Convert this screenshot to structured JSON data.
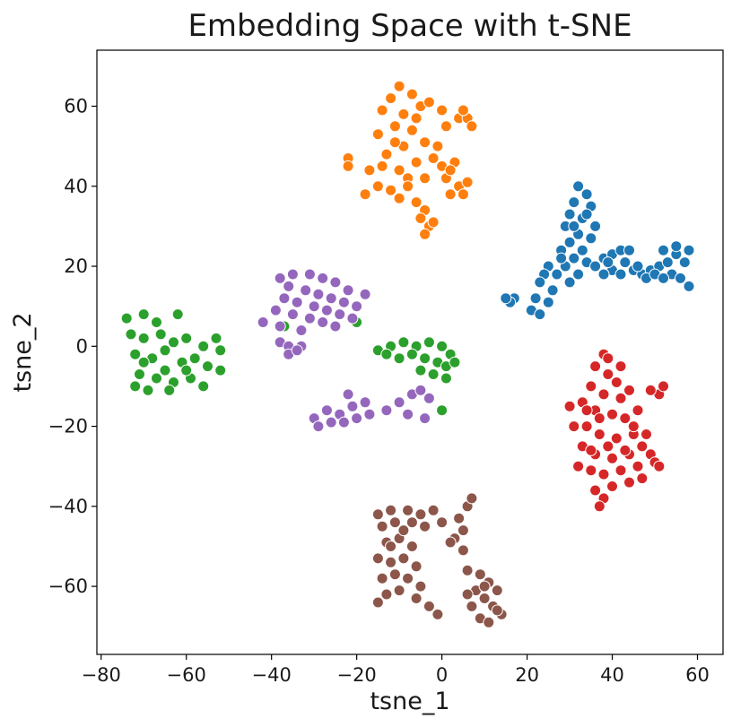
{
  "chart_data": {
    "type": "scatter",
    "title": "Embedding Space with t-SNE",
    "xlabel": "tsne_1",
    "ylabel": "tsne_2",
    "xlim": [
      -81,
      66
    ],
    "ylim": [
      -77,
      74
    ],
    "xticks": [
      -80,
      -60,
      -40,
      -20,
      0,
      20,
      40,
      60
    ],
    "yticks": [
      -60,
      -40,
      -20,
      0,
      20,
      40,
      60
    ],
    "tick_labels_x": [
      "−80",
      "−60",
      "−40",
      "−20",
      "0",
      "20",
      "40",
      "60"
    ],
    "tick_labels_y": [
      "−60",
      "−40",
      "−20",
      "0",
      "20",
      "40",
      "60"
    ],
    "grid": false,
    "legend": "none",
    "marker": {
      "edge_color": "#ffffff"
    },
    "series": [
      {
        "color": "#1f77b4",
        "points": [
          [
            32,
            40
          ],
          [
            34,
            38
          ],
          [
            31,
            36
          ],
          [
            35,
            35
          ],
          [
            30,
            33
          ],
          [
            33,
            32
          ],
          [
            36,
            30
          ],
          [
            29,
            30
          ],
          [
            32,
            28
          ],
          [
            35,
            27
          ],
          [
            30,
            26
          ],
          [
            33,
            24
          ],
          [
            28,
            24
          ],
          [
            31,
            22
          ],
          [
            34,
            21
          ],
          [
            29,
            20
          ],
          [
            32,
            18
          ],
          [
            27,
            18
          ],
          [
            30,
            16
          ],
          [
            25,
            20
          ],
          [
            24,
            18
          ],
          [
            23,
            16
          ],
          [
            26,
            14
          ],
          [
            22,
            12
          ],
          [
            25,
            11
          ],
          [
            21,
            9
          ],
          [
            23,
            8
          ],
          [
            17,
            12
          ],
          [
            16,
            11
          ],
          [
            15,
            12
          ],
          [
            36,
            20
          ],
          [
            38,
            22
          ],
          [
            40,
            23
          ],
          [
            42,
            24
          ],
          [
            44,
            24
          ],
          [
            43,
            21
          ],
          [
            40,
            19
          ],
          [
            38,
            18
          ],
          [
            45,
            19
          ],
          [
            47,
            18
          ],
          [
            49,
            19
          ],
          [
            51,
            20
          ],
          [
            53,
            21
          ],
          [
            52,
            24
          ],
          [
            55,
            23
          ],
          [
            54,
            18
          ],
          [
            56,
            17
          ],
          [
            58,
            15
          ],
          [
            57,
            21
          ],
          [
            58,
            24
          ],
          [
            48,
            17
          ],
          [
            46,
            20
          ],
          [
            50,
            18
          ],
          [
            52,
            17
          ],
          [
            42,
            18
          ],
          [
            39,
            21
          ],
          [
            55,
            25
          ],
          [
            34,
            33
          ],
          [
            31,
            30
          ],
          [
            28,
            22
          ]
        ]
      },
      {
        "color": "#ff7f0e",
        "points": [
          [
            -10,
            65
          ],
          [
            -7,
            63
          ],
          [
            -12,
            62
          ],
          [
            -5,
            60
          ],
          [
            -14,
            59
          ],
          [
            -9,
            58
          ],
          [
            -3,
            61
          ],
          [
            0,
            59
          ],
          [
            1,
            55
          ],
          [
            4,
            57
          ],
          [
            6,
            57
          ],
          [
            7,
            55
          ],
          [
            5,
            59
          ],
          [
            -11,
            55
          ],
          [
            -7,
            54
          ],
          [
            -15,
            53
          ],
          [
            -4,
            51
          ],
          [
            -9,
            50
          ],
          [
            -13,
            48
          ],
          [
            -2,
            47
          ],
          [
            -6,
            46
          ],
          [
            0,
            45
          ],
          [
            3,
            46
          ],
          [
            -14,
            45
          ],
          [
            -10,
            44
          ],
          [
            -17,
            44
          ],
          [
            -22,
            47
          ],
          [
            -22,
            45
          ],
          [
            -8,
            42
          ],
          [
            -4,
            42
          ],
          [
            1,
            42
          ],
          [
            4,
            40
          ],
          [
            6,
            41
          ],
          [
            2,
            38
          ],
          [
            5,
            38
          ],
          [
            -15,
            40
          ],
          [
            -12,
            39
          ],
          [
            -18,
            38
          ],
          [
            -10,
            37
          ],
          [
            -6,
            36
          ],
          [
            -4,
            34
          ],
          [
            -5,
            32
          ],
          [
            -3,
            30
          ],
          [
            -4,
            28
          ],
          [
            -2,
            31
          ],
          [
            -8,
            40
          ],
          [
            -1,
            50
          ],
          [
            -6,
            57
          ],
          [
            -11,
            51
          ],
          [
            2,
            44
          ]
        ]
      },
      {
        "color": "#2ca02c",
        "points": [
          [
            -74,
            7
          ],
          [
            -70,
            8
          ],
          [
            -67,
            6
          ],
          [
            -62,
            8
          ],
          [
            -73,
            3
          ],
          [
            -70,
            2
          ],
          [
            -66,
            3
          ],
          [
            -63,
            1
          ],
          [
            -60,
            2
          ],
          [
            -56,
            0
          ],
          [
            -53,
            2
          ],
          [
            -52,
            -1
          ],
          [
            -72,
            -2
          ],
          [
            -68,
            -3
          ],
          [
            -65,
            -1
          ],
          [
            -61,
            -4
          ],
          [
            -58,
            -3
          ],
          [
            -55,
            -5
          ],
          [
            -52,
            -6
          ],
          [
            -71,
            -7
          ],
          [
            -67,
            -8
          ],
          [
            -63,
            -9
          ],
          [
            -59,
            -8
          ],
          [
            -56,
            -10
          ],
          [
            -72,
            -10
          ],
          [
            -69,
            -11
          ],
          [
            -65,
            -6
          ],
          [
            -60,
            -6
          ],
          [
            -64,
            -11
          ],
          [
            -70,
            -4
          ],
          [
            -15,
            -1
          ],
          [
            -12,
            0
          ],
          [
            -9,
            1
          ],
          [
            -6,
            0
          ],
          [
            -3,
            1
          ],
          [
            0,
            0
          ],
          [
            2,
            -2
          ],
          [
            -13,
            -2
          ],
          [
            -10,
            -3
          ],
          [
            -7,
            -2
          ],
          [
            -4,
            -3
          ],
          [
            -1,
            -4
          ],
          [
            1,
            -5
          ],
          [
            3,
            -4
          ],
          [
            -5,
            -6
          ],
          [
            -2,
            -7
          ],
          [
            1,
            -8
          ],
          [
            -20,
            6
          ],
          [
            -37,
            5
          ],
          [
            0,
            -16
          ]
        ]
      },
      {
        "color": "#d62728",
        "points": [
          [
            38,
            -2
          ],
          [
            36,
            -5
          ],
          [
            39,
            -7
          ],
          [
            41,
            -9
          ],
          [
            35,
            -10
          ],
          [
            38,
            -12
          ],
          [
            42,
            -13
          ],
          [
            44,
            -11
          ],
          [
            33,
            -14
          ],
          [
            36,
            -16
          ],
          [
            40,
            -17
          ],
          [
            43,
            -18
          ],
          [
            46,
            -16
          ],
          [
            34,
            -20
          ],
          [
            37,
            -22
          ],
          [
            41,
            -23
          ],
          [
            45,
            -22
          ],
          [
            33,
            -25
          ],
          [
            36,
            -27
          ],
          [
            40,
            -28
          ],
          [
            44,
            -27
          ],
          [
            47,
            -25
          ],
          [
            49,
            -27
          ],
          [
            35,
            -31
          ],
          [
            38,
            -32
          ],
          [
            42,
            -31
          ],
          [
            46,
            -30
          ],
          [
            50,
            -29
          ],
          [
            47,
            -33
          ],
          [
            44,
            -34
          ],
          [
            40,
            -35
          ],
          [
            36,
            -36
          ],
          [
            38,
            -38
          ],
          [
            35,
            -26
          ],
          [
            31,
            -20
          ],
          [
            32,
            -30
          ],
          [
            51,
            -12
          ],
          [
            52,
            -10
          ],
          [
            49,
            -11
          ],
          [
            30,
            -15
          ],
          [
            42,
            -5
          ],
          [
            39,
            -3
          ],
          [
            37,
            -18
          ],
          [
            45,
            -20
          ],
          [
            48,
            -22
          ],
          [
            43,
            -26
          ],
          [
            39,
            -25
          ],
          [
            34,
            -16
          ],
          [
            51,
            -30
          ],
          [
            37,
            -40
          ]
        ]
      },
      {
        "color": "#9467bd",
        "points": [
          [
            -38,
            17
          ],
          [
            -35,
            18
          ],
          [
            -31,
            18
          ],
          [
            -28,
            17
          ],
          [
            -25,
            16
          ],
          [
            -22,
            14
          ],
          [
            -18,
            13
          ],
          [
            -36,
            15
          ],
          [
            -32,
            14
          ],
          [
            -29,
            13
          ],
          [
            -26,
            12
          ],
          [
            -23,
            11
          ],
          [
            -20,
            10
          ],
          [
            -37,
            12
          ],
          [
            -34,
            11
          ],
          [
            -30,
            10
          ],
          [
            -27,
            9
          ],
          [
            -24,
            8
          ],
          [
            -21,
            7
          ],
          [
            -39,
            9
          ],
          [
            -35,
            8
          ],
          [
            -31,
            7
          ],
          [
            -28,
            6
          ],
          [
            -25,
            5
          ],
          [
            -42,
            6
          ],
          [
            -38,
            5
          ],
          [
            -33,
            4
          ],
          [
            -38,
            1
          ],
          [
            -36,
            0
          ],
          [
            -33,
            0
          ],
          [
            -36,
            -2
          ],
          [
            -34,
            -1
          ],
          [
            -30,
            -18
          ],
          [
            -27,
            -16
          ],
          [
            -24,
            -17
          ],
          [
            -21,
            -15
          ],
          [
            -18,
            -14
          ],
          [
            -29,
            -20
          ],
          [
            -26,
            -19
          ],
          [
            -23,
            -19
          ],
          [
            -20,
            -18
          ],
          [
            -17,
            -17
          ],
          [
            -13,
            -16
          ],
          [
            -10,
            -14
          ],
          [
            -7,
            -12
          ],
          [
            -5,
            -11
          ],
          [
            -3,
            -13
          ],
          [
            -8,
            -17
          ],
          [
            -4,
            -18
          ],
          [
            -22,
            -12
          ]
        ]
      },
      {
        "color": "#8c564b",
        "points": [
          [
            -15,
            -42
          ],
          [
            -12,
            -41
          ],
          [
            -8,
            -41
          ],
          [
            -5,
            -42
          ],
          [
            -2,
            -41
          ],
          [
            -14,
            -45
          ],
          [
            -11,
            -44
          ],
          [
            -7,
            -44
          ],
          [
            -4,
            -45
          ],
          [
            -13,
            -49
          ],
          [
            -10,
            -48
          ],
          [
            -7,
            -50
          ],
          [
            -15,
            -53
          ],
          [
            -12,
            -54
          ],
          [
            -9,
            -53
          ],
          [
            -14,
            -58
          ],
          [
            -11,
            -57
          ],
          [
            -8,
            -58
          ],
          [
            -13,
            -62
          ],
          [
            -10,
            -61
          ],
          [
            -15,
            -64
          ],
          [
            -5,
            -60
          ],
          [
            -6,
            -63
          ],
          [
            -3,
            -65
          ],
          [
            -1,
            -67
          ],
          [
            3,
            -48
          ],
          [
            5,
            -46
          ],
          [
            4,
            -43
          ],
          [
            6,
            -40
          ],
          [
            7,
            -38
          ],
          [
            5,
            -51
          ],
          [
            2,
            -49
          ],
          [
            6,
            -56
          ],
          [
            9,
            -57
          ],
          [
            11,
            -59
          ],
          [
            13,
            -61
          ],
          [
            8,
            -61
          ],
          [
            10,
            -63
          ],
          [
            12,
            -65
          ],
          [
            14,
            -67
          ],
          [
            7,
            -65
          ],
          [
            9,
            -68
          ],
          [
            11,
            -69
          ],
          [
            13,
            -66
          ],
          [
            6,
            -62
          ],
          [
            -6,
            -55
          ],
          [
            -9,
            -46
          ],
          [
            -12,
            -50
          ],
          [
            0,
            -44
          ],
          [
            10,
            -60
          ]
        ]
      }
    ]
  }
}
